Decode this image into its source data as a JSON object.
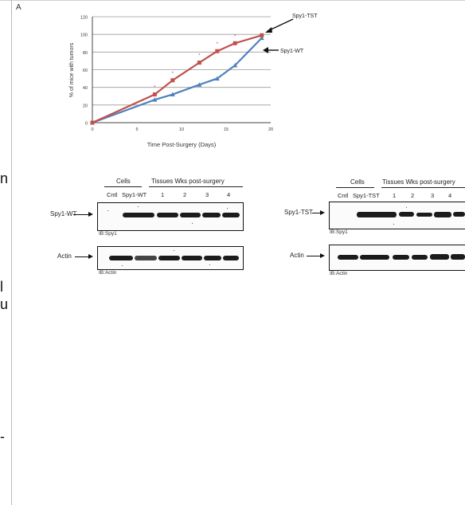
{
  "panel_label": "A",
  "cut_letters": [
    "n",
    "l",
    "u",
    "-"
  ],
  "chart_data": {
    "type": "line",
    "title": "",
    "xlabel": "Time Post-Surgery (Days)",
    "ylabel": "% of mice with tumors",
    "xlim": [
      0,
      20
    ],
    "ylim": [
      0,
      120
    ],
    "xticks": [
      0,
      5,
      10,
      15,
      20
    ],
    "yticks": [
      0,
      20,
      40,
      60,
      80,
      100,
      120
    ],
    "grid": true,
    "series": [
      {
        "name": "Spy1-TST",
        "color": "#c0504d",
        "marker": "square",
        "x": [
          0,
          7,
          9,
          12,
          14,
          16,
          19
        ],
        "y": [
          0,
          32,
          48,
          68,
          81,
          90,
          99
        ]
      },
      {
        "name": "Spy1-WT",
        "color": "#4f81bd",
        "marker": "triangle",
        "x": [
          0,
          7,
          9,
          12,
          14,
          16,
          19
        ],
        "y": [
          0,
          26,
          32,
          43,
          50,
          65,
          96
        ]
      }
    ],
    "significance": [
      {
        "x": 7,
        "y": 32,
        "label": "*"
      },
      {
        "x": 9,
        "y": 48,
        "label": "*"
      },
      {
        "x": 12,
        "y": 68,
        "label": "*"
      },
      {
        "x": 14,
        "y": 81,
        "label": "*"
      },
      {
        "x": 16,
        "y": 90,
        "label": "*"
      }
    ],
    "annotations": [
      {
        "text": "Spy1-TST",
        "points_to_series": "Spy1-TST"
      },
      {
        "text": "Spy1-WT",
        "points_to_series": "Spy1-WT"
      }
    ]
  },
  "blot_wt": {
    "cells_label": "Cells",
    "tissues_label": "Tissues Wks post-surgery",
    "lanes": [
      "Cntl",
      "Spy1-WT",
      "1",
      "2",
      "3",
      "4"
    ],
    "row1_label": "Spy1-WT",
    "row1_ib": "IB:Spy1",
    "row2_label": "Actin",
    "row2_ib": "IB:Actin"
  },
  "blot_tst": {
    "cells_label": "Cells",
    "tissues_label": "Tissues Wks post-surgery",
    "lanes": [
      "Cntl",
      "Spy1-TST",
      "1",
      "2",
      "3",
      "4"
    ],
    "row1_label": "Spy1-TST",
    "row1_ib": "IB:Spy1",
    "row2_label": "Actin",
    "row2_ib": "IB:Actin"
  }
}
